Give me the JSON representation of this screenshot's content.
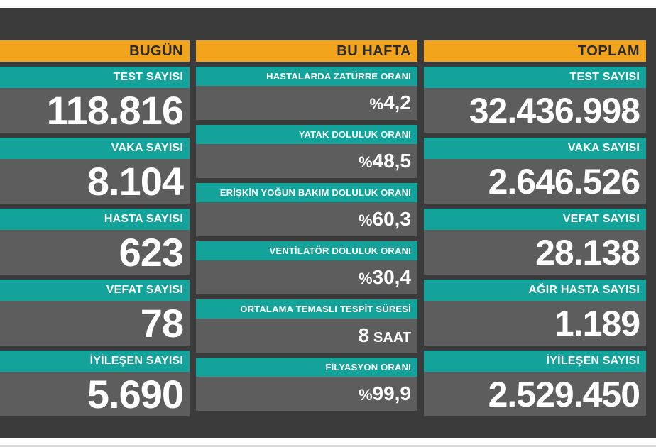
{
  "today": {
    "header": "BUGÜN",
    "items": [
      {
        "label": "TEST SAYISI",
        "value": "118.816"
      },
      {
        "label": "VAKA SAYISI",
        "value": "8.104"
      },
      {
        "label": "HASTA SAYISI",
        "value": "623"
      },
      {
        "label": "VEFAT SAYISI",
        "value": "78"
      },
      {
        "label": "İYİLEŞEN SAYISI",
        "value": "5.690"
      }
    ]
  },
  "week": {
    "header": "BU HAFTA",
    "items": [
      {
        "label": "HASTALARDA ZATÜRRE ORANI",
        "prefix": "%",
        "value": "4,2"
      },
      {
        "label": "YATAK DOLULUK ORANI",
        "prefix": "%",
        "value": "48,5"
      },
      {
        "label": "ERİŞKİN YOĞUN BAKIM DOLULUK ORANI",
        "prefix": "%",
        "value": "60,3"
      },
      {
        "label": "VENTİLATÖR DOLULUK ORANI",
        "prefix": "%",
        "value": "30,4"
      },
      {
        "label": "ORTALAMA TEMASLI TESPİT SÜRESİ",
        "value": "8",
        "unit": "SAAT"
      },
      {
        "label": "FİLYASYON ORANI",
        "prefix": "%",
        "value": "99,9"
      }
    ]
  },
  "total": {
    "header": "TOPLAM",
    "items": [
      {
        "label": "TEST SAYISI",
        "value": "32.436.998"
      },
      {
        "label": "VAKA SAYISI",
        "value": "2.646.526"
      },
      {
        "label": "VEFAT SAYISI",
        "value": "28.138"
      },
      {
        "label": "AĞIR HASTA SAYISI",
        "value": "1.189"
      },
      {
        "label": "İYİLEŞEN SAYISI",
        "value": "2.529.450"
      }
    ]
  },
  "colors": {
    "header_bg": "#f2a51c",
    "label_bg": "#14a39a",
    "value_bg": "#5d5d5d",
    "board_bg": "#3b3b3b"
  }
}
